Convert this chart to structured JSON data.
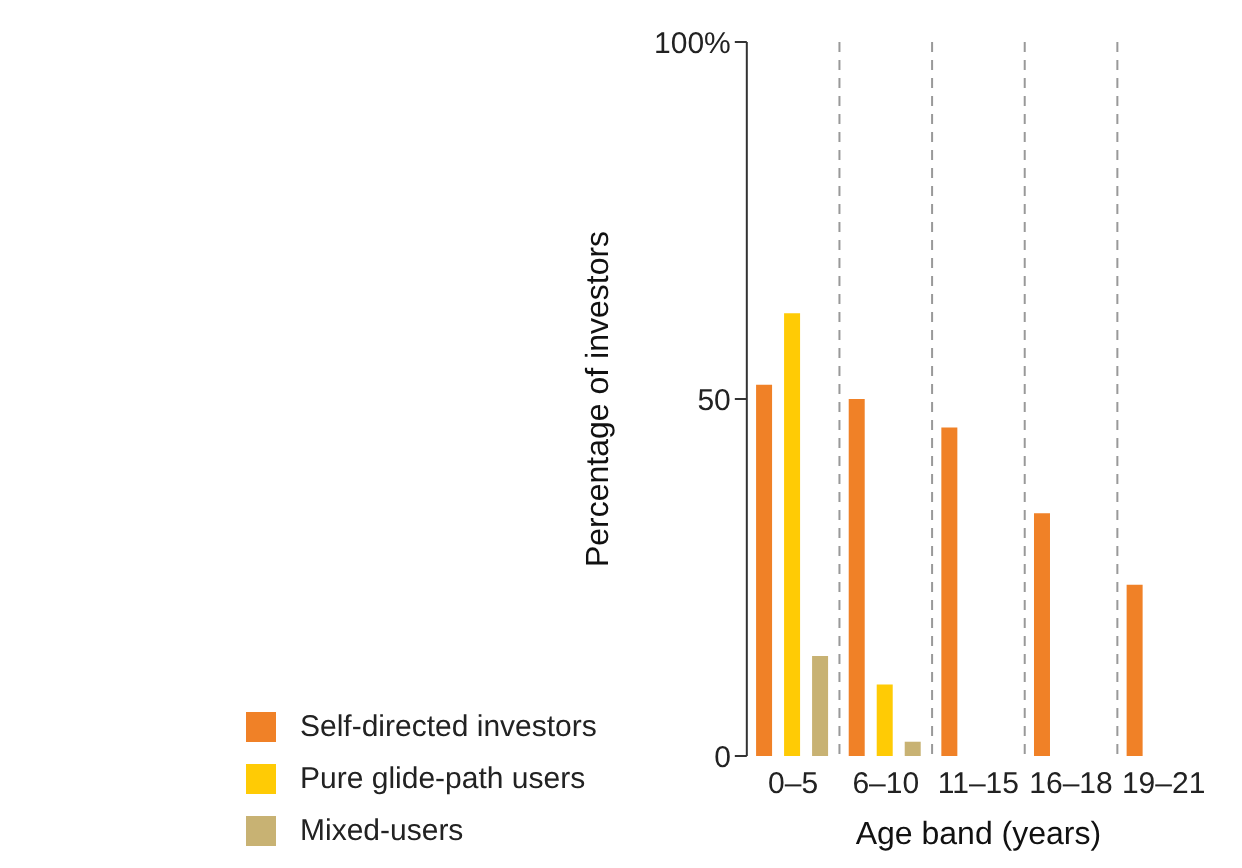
{
  "chart_data": {
    "type": "bar",
    "xlabel": "Age band (years)",
    "ylabel": "Percentage of investors",
    "categories": [
      "0–5",
      "6–10",
      "11–15",
      "16–18",
      "19–21"
    ],
    "series": [
      {
        "name": "Self-directed investors",
        "color": "#f08127",
        "values": [
          52,
          50,
          46,
          34,
          24
        ]
      },
      {
        "name": "Pure glide-path users",
        "color": "#ffcb05",
        "values": [
          62,
          10,
          null,
          null,
          null
        ]
      },
      {
        "name": "Mixed-users",
        "color": "#c8b273",
        "values": [
          14,
          2,
          null,
          null,
          null
        ]
      }
    ],
    "ylim": [
      0,
      100
    ],
    "yticks": [
      0,
      50,
      {
        "value": 100,
        "label": "100%"
      }
    ],
    "grid": "x",
    "legend": "bottom left"
  }
}
